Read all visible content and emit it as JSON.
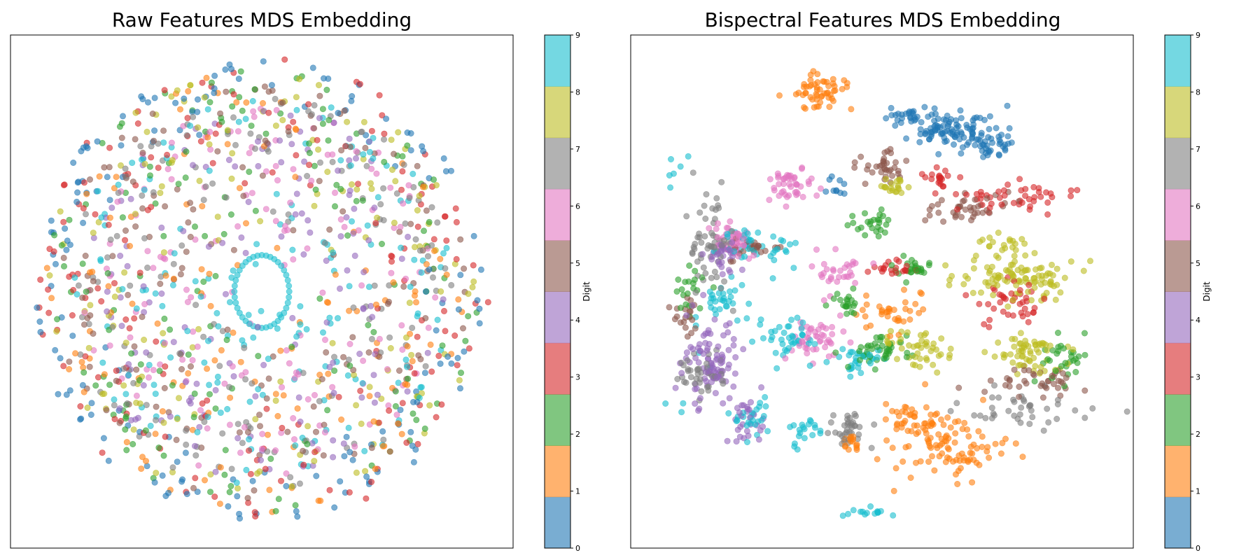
{
  "colormap": {
    "name": "tab10",
    "colors": [
      "#1f77b4",
      "#ff7f0e",
      "#2ca02c",
      "#d62728",
      "#9467bd",
      "#8c564b",
      "#e377c2",
      "#7f7f7f",
      "#bcbd22",
      "#17becf"
    ]
  },
  "chart_data": [
    {
      "type": "scatter",
      "title": "Raw Features MDS Embedding",
      "xlabel": "",
      "ylabel": "",
      "axis_ticks": "hidden",
      "grid": false,
      "point_alpha": 0.6,
      "colorbar": {
        "label": "Digit",
        "ticks": [
          "0",
          "1",
          "2",
          "3",
          "4",
          "5",
          "6",
          "7",
          "8",
          "9"
        ],
        "range": [
          0,
          9
        ],
        "alpha": 0.6
      },
      "description": "Concentric ring of mixed digit classes; no class separation, digit 9 forms small inner ring",
      "xlim": [
        -1.1,
        1.1
      ],
      "ylim": [
        -1.1,
        1.1
      ],
      "classes": [
        {
          "digit": 0,
          "count": 160,
          "r": [
            0.7,
            1.0
          ],
          "ang": [
            0,
            360
          ]
        },
        {
          "digit": 1,
          "count": 130,
          "r": [
            0.1,
            0.95
          ],
          "ang": [
            0,
            360
          ]
        },
        {
          "digit": 2,
          "count": 150,
          "r": [
            0.15,
            0.95
          ],
          "ang": [
            0,
            360
          ]
        },
        {
          "digit": 3,
          "count": 160,
          "r": [
            0.45,
            1.0
          ],
          "ang": [
            0,
            360
          ]
        },
        {
          "digit": 4,
          "count": 140,
          "r": [
            0.1,
            0.8
          ],
          "ang": [
            0,
            360
          ]
        },
        {
          "digit": 5,
          "count": 140,
          "r": [
            0.2,
            0.9
          ],
          "ang": [
            0,
            360
          ]
        },
        {
          "digit": 6,
          "count": 150,
          "r": [
            0.05,
            0.8
          ],
          "ang": [
            0,
            360
          ]
        },
        {
          "digit": 7,
          "count": 150,
          "r": [
            0.2,
            0.85
          ],
          "ang": [
            0,
            360
          ]
        },
        {
          "digit": 8,
          "count": 140,
          "r": [
            0.25,
            0.95
          ],
          "ang": [
            0,
            360
          ]
        },
        {
          "digit": 9,
          "count": 160,
          "r": [
            0.05,
            0.85
          ],
          "ang": [
            0,
            360
          ],
          "inner_ring": {
            "r": 0.12,
            "count": 40
          }
        }
      ]
    },
    {
      "type": "scatter",
      "title": "Bispectral Features MDS Embedding",
      "xlabel": "",
      "ylabel": "",
      "axis_ticks": "hidden",
      "grid": false,
      "point_alpha": 0.6,
      "colorbar": {
        "label": "Digit",
        "ticks": [
          "0",
          "1",
          "2",
          "3",
          "4",
          "5",
          "6",
          "7",
          "8",
          "9"
        ],
        "range": [
          0,
          9
        ],
        "alpha": 0.6
      },
      "description": "Digits form distinct clusters arranged along a ring",
      "xlim": [
        -1.1,
        1.1
      ],
      "ylim": [
        -1.1,
        1.1
      ],
      "clusters": [
        {
          "digit": 0,
          "cx": 0.3,
          "cy": 0.7,
          "sx": 0.1,
          "sy": 0.04,
          "count": 90
        },
        {
          "digit": 0,
          "cx": 0.45,
          "cy": 0.63,
          "sx": 0.06,
          "sy": 0.03,
          "count": 40
        },
        {
          "digit": 0,
          "cx": 0.1,
          "cy": 0.75,
          "sx": 0.04,
          "sy": 0.02,
          "count": 20
        },
        {
          "digit": 0,
          "cx": -0.2,
          "cy": 0.45,
          "sx": 0.03,
          "sy": 0.02,
          "count": 10
        },
        {
          "digit": 1,
          "cx": -0.25,
          "cy": 0.85,
          "sx": 0.08,
          "sy": 0.04,
          "count": 55
        },
        {
          "digit": 1,
          "cx": 0.3,
          "cy": -0.7,
          "sx": 0.12,
          "sy": 0.06,
          "count": 80
        },
        {
          "digit": 1,
          "cx": 0.15,
          "cy": -0.55,
          "sx": 0.08,
          "sy": 0.04,
          "count": 50
        },
        {
          "digit": 1,
          "cx": 0.05,
          "cy": -0.1,
          "sx": 0.07,
          "sy": 0.04,
          "count": 35
        },
        {
          "digit": 1,
          "cx": -0.15,
          "cy": -0.65,
          "sx": 0.03,
          "sy": 0.02,
          "count": 15
        },
        {
          "digit": 2,
          "cx": -0.05,
          "cy": 0.3,
          "sx": 0.05,
          "sy": 0.03,
          "count": 25
        },
        {
          "digit": 2,
          "cx": 0.15,
          "cy": 0.1,
          "sx": 0.05,
          "sy": 0.02,
          "count": 25
        },
        {
          "digit": 2,
          "cx": -0.15,
          "cy": -0.05,
          "sx": 0.04,
          "sy": 0.03,
          "count": 20
        },
        {
          "digit": 2,
          "cx": 0.0,
          "cy": -0.25,
          "sx": 0.07,
          "sy": 0.04,
          "count": 40
        },
        {
          "digit": 2,
          "cx": -0.85,
          "cy": 0.0,
          "sx": 0.03,
          "sy": 0.08,
          "count": 20
        },
        {
          "digit": 2,
          "cx": 0.8,
          "cy": -0.3,
          "sx": 0.06,
          "sy": 0.05,
          "count": 30
        },
        {
          "digit": 3,
          "cx": 0.6,
          "cy": 0.4,
          "sx": 0.12,
          "sy": 0.03,
          "count": 45
        },
        {
          "digit": 3,
          "cx": 0.55,
          "cy": -0.05,
          "sx": 0.08,
          "sy": 0.05,
          "count": 40
        },
        {
          "digit": 3,
          "cx": 0.05,
          "cy": 0.1,
          "sx": 0.04,
          "sy": 0.02,
          "count": 20
        },
        {
          "digit": 3,
          "cx": 0.25,
          "cy": 0.48,
          "sx": 0.04,
          "sy": 0.02,
          "count": 20
        },
        {
          "digit": 4,
          "cx": -0.75,
          "cy": -0.3,
          "sx": 0.06,
          "sy": 0.1,
          "count": 90
        },
        {
          "digit": 4,
          "cx": -0.6,
          "cy": -0.55,
          "sx": 0.04,
          "sy": 0.05,
          "count": 30
        },
        {
          "digit": 4,
          "cx": -0.7,
          "cy": 0.15,
          "sx": 0.04,
          "sy": 0.04,
          "count": 30
        },
        {
          "digit": 5,
          "cx": 0.0,
          "cy": 0.55,
          "sx": 0.06,
          "sy": 0.04,
          "count": 35
        },
        {
          "digit": 5,
          "cx": 0.4,
          "cy": 0.35,
          "sx": 0.1,
          "sy": 0.03,
          "count": 40
        },
        {
          "digit": 5,
          "cx": 0.65,
          "cy": -0.4,
          "sx": 0.1,
          "sy": 0.04,
          "count": 40
        },
        {
          "digit": 5,
          "cx": -0.85,
          "cy": -0.1,
          "sx": 0.03,
          "sy": 0.05,
          "count": 20
        },
        {
          "digit": 5,
          "cx": -0.55,
          "cy": 0.2,
          "sx": 0.05,
          "sy": 0.04,
          "count": 25
        },
        {
          "digit": 6,
          "cx": -0.4,
          "cy": 0.45,
          "sx": 0.05,
          "sy": 0.04,
          "count": 45
        },
        {
          "digit": 6,
          "cx": -0.65,
          "cy": 0.22,
          "sx": 0.05,
          "sy": 0.04,
          "count": 45
        },
        {
          "digit": 6,
          "cx": -0.3,
          "cy": -0.2,
          "sx": 0.08,
          "sy": 0.05,
          "count": 45
        },
        {
          "digit": 6,
          "cx": -0.2,
          "cy": 0.1,
          "sx": 0.05,
          "sy": 0.04,
          "count": 30
        },
        {
          "digit": 7,
          "cx": -0.75,
          "cy": 0.2,
          "sx": 0.05,
          "sy": 0.1,
          "count": 60
        },
        {
          "digit": 7,
          "cx": -0.8,
          "cy": -0.35,
          "sx": 0.05,
          "sy": 0.06,
          "count": 40
        },
        {
          "digit": 7,
          "cx": -0.15,
          "cy": -0.6,
          "sx": 0.05,
          "sy": 0.04,
          "count": 35
        },
        {
          "digit": 7,
          "cx": 0.6,
          "cy": -0.5,
          "sx": 0.15,
          "sy": 0.04,
          "count": 40
        },
        {
          "digit": 8,
          "cx": 0.6,
          "cy": 0.05,
          "sx": 0.12,
          "sy": 0.05,
          "count": 100
        },
        {
          "digit": 8,
          "cx": 0.65,
          "cy": -0.25,
          "sx": 0.08,
          "sy": 0.05,
          "count": 60
        },
        {
          "digit": 8,
          "cx": 0.15,
          "cy": -0.25,
          "sx": 0.07,
          "sy": 0.04,
          "count": 45
        },
        {
          "digit": 8,
          "cx": 0.05,
          "cy": 0.45,
          "sx": 0.04,
          "sy": 0.02,
          "count": 20
        },
        {
          "digit": 8,
          "cx": 0.55,
          "cy": 0.2,
          "sx": 0.06,
          "sy": 0.03,
          "count": 20
        },
        {
          "digit": 9,
          "cx": -0.55,
          "cy": 0.2,
          "sx": 0.08,
          "sy": 0.05,
          "count": 40
        },
        {
          "digit": 9,
          "cx": -0.7,
          "cy": -0.05,
          "sx": 0.05,
          "sy": 0.05,
          "count": 30
        },
        {
          "digit": 9,
          "cx": -0.4,
          "cy": -0.2,
          "sx": 0.06,
          "sy": 0.05,
          "count": 40
        },
        {
          "digit": 9,
          "cx": -0.1,
          "cy": -0.3,
          "sx": 0.05,
          "sy": 0.03,
          "count": 30
        },
        {
          "digit": 9,
          "cx": -0.55,
          "cy": -0.55,
          "sx": 0.04,
          "sy": 0.04,
          "count": 25
        },
        {
          "digit": 9,
          "cx": -0.35,
          "cy": -0.6,
          "sx": 0.04,
          "sy": 0.03,
          "count": 20
        },
        {
          "digit": 9,
          "cx": -0.05,
          "cy": -0.95,
          "sx": 0.05,
          "sy": 0.01,
          "count": 15
        },
        {
          "digit": 9,
          "cx": -0.92,
          "cy": 0.5,
          "sx": 0.03,
          "sy": 0.04,
          "count": 6
        },
        {
          "digit": 9,
          "cx": -0.85,
          "cy": -0.3,
          "sx": 0.06,
          "sy": 0.1,
          "count": 6
        }
      ]
    }
  ]
}
